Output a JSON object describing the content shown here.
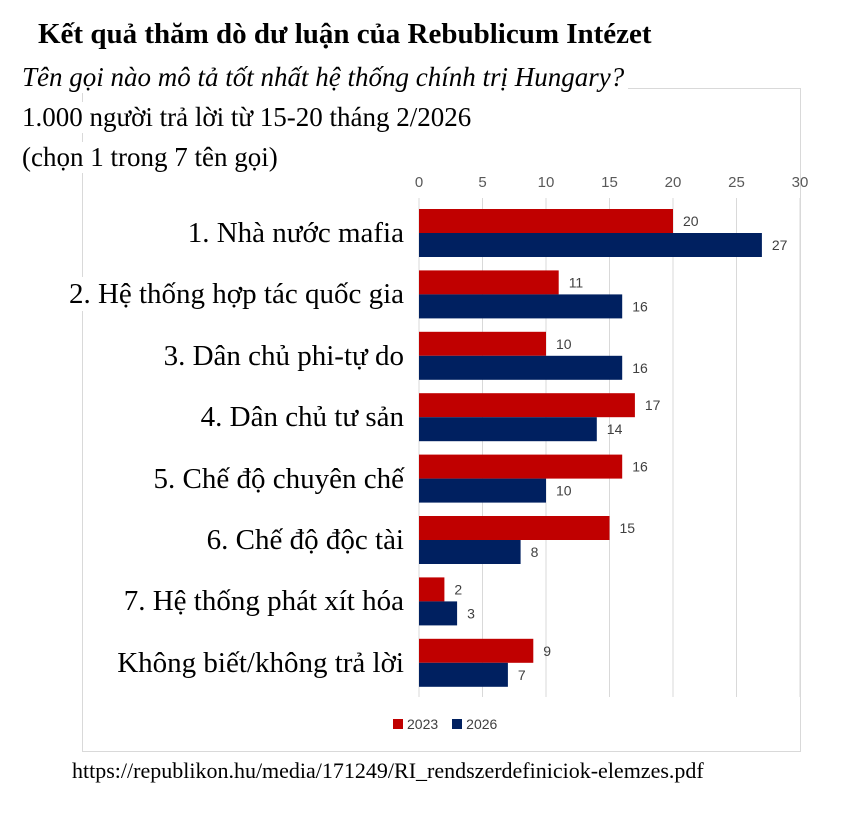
{
  "chart_data": {
    "type": "bar",
    "orientation": "horizontal",
    "title": "Kết quả thăm dò dư luận của Rebublicum Intézet",
    "subtitle": "Tên gọi nào mô tả tốt nhất hệ thống chính trị Hungary?",
    "notes": [
      "1.000 người trả lời từ 15-20 tháng 2/2026",
      "(chọn 1 trong 7 tên gọi)"
    ],
    "categories": [
      "1. Nhà nước mafia",
      "2. Hệ thống hợp tác quốc gia",
      "3. Dân chủ phi-tự do",
      "4. Dân chủ tư sản",
      "5. Chế độ chuyên chế",
      "6. Chế độ độc tài",
      "7. Hệ thống phát xít hóa",
      "Không biết/không trả lời"
    ],
    "series": [
      {
        "name": "2023",
        "color": "#c00000",
        "values": [
          20,
          11,
          10,
          17,
          16,
          15,
          2,
          9
        ]
      },
      {
        "name": "2026",
        "color": "#002060",
        "values": [
          27,
          16,
          16,
          14,
          10,
          8,
          3,
          7
        ]
      }
    ],
    "xlim": [
      0,
      30
    ],
    "xticks": [
      0,
      5,
      10,
      15,
      20,
      25,
      30
    ],
    "axis_position": "top",
    "grid": true,
    "legend": "bottom",
    "source": "https://republikon.hu/media/171249/RI_rendszerdefiniciok-elemzes.pdf"
  }
}
